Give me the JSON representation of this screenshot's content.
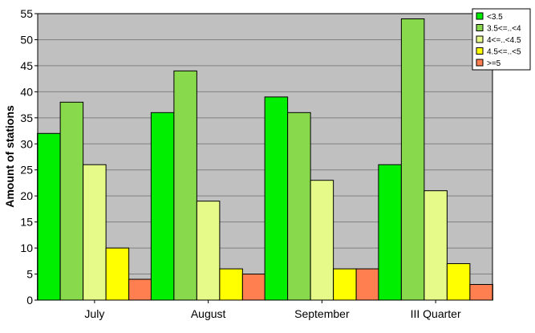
{
  "chart_data": {
    "type": "bar",
    "title": "",
    "xlabel": "",
    "ylabel": "Amount of stations",
    "ylim": [
      0,
      55
    ],
    "yticks": [
      0,
      5,
      10,
      15,
      20,
      25,
      30,
      35,
      40,
      45,
      50,
      55
    ],
    "grid": true,
    "legend_position": "top-right",
    "categories": [
      "July",
      "August",
      "September",
      "III Quarter"
    ],
    "series": [
      {
        "name": "<3.5",
        "color": "#00ee00",
        "values": [
          32,
          36,
          39,
          26
        ]
      },
      {
        "name": "3.5<=..<4",
        "color": "#88d94c",
        "values": [
          38,
          44,
          36,
          54
        ]
      },
      {
        "name": "4<=..<4.5",
        "color": "#e6fa8a",
        "values": [
          26,
          19,
          23,
          21
        ]
      },
      {
        "name": "4.5<=..<5",
        "color": "#ffff00",
        "values": [
          10,
          6,
          6,
          7
        ]
      },
      {
        "name": ">=5",
        "color": "#ff7f50",
        "values": [
          4,
          5,
          6,
          3
        ]
      }
    ],
    "colors": {
      "plot_background": "#c0c0c0",
      "gridline": "#808080"
    }
  }
}
